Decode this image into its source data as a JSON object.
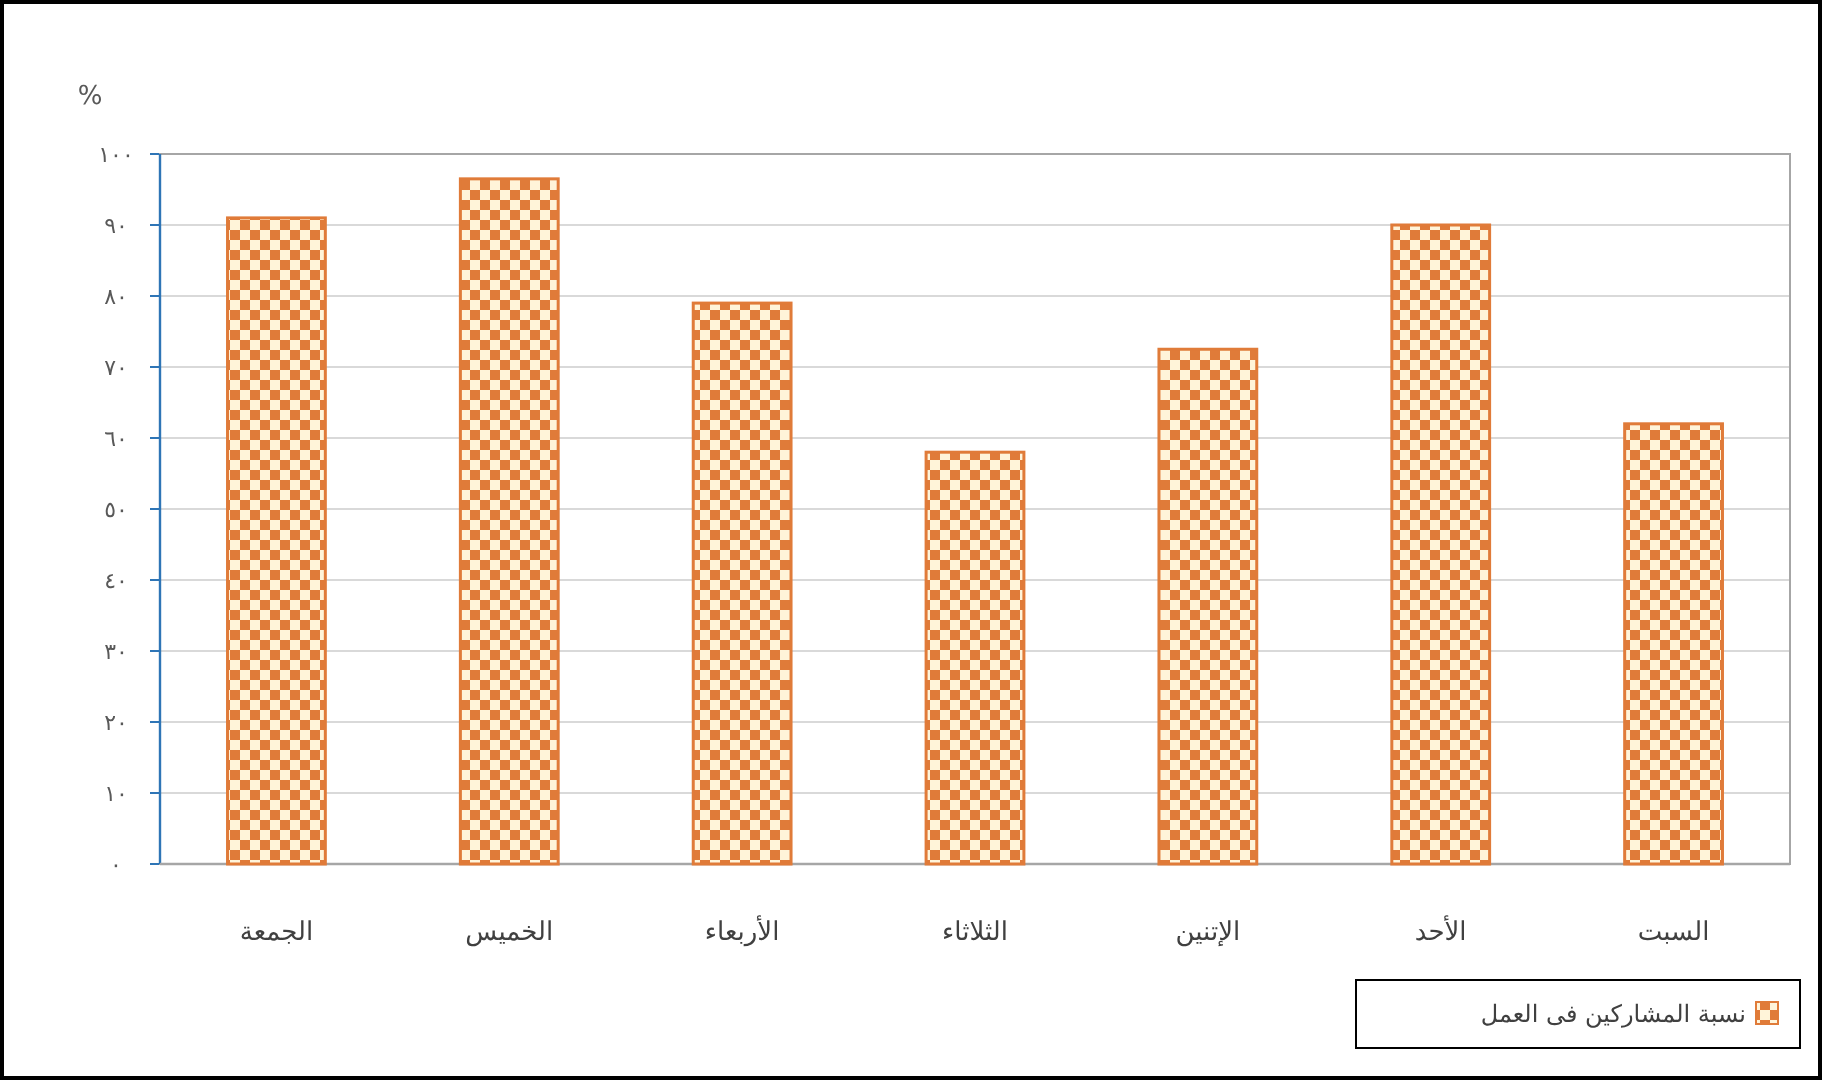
{
  "chart_data": {
    "type": "bar",
    "ylabel": "%",
    "categories": [
      "الجمعة",
      "الخميس",
      "الأربعاء",
      "الثلاثاء",
      "الإتنين",
      "الأحد",
      "السبت"
    ],
    "series": [
      {
        "name": "نسبة المشاركين فى العمل",
        "color": "#e07b39",
        "values": [
          91,
          96.5,
          79,
          58,
          72.5,
          90,
          62
        ]
      }
    ],
    "ylim": [
      0,
      100
    ],
    "yticks": [
      {
        "value": 0,
        "label": "٠"
      },
      {
        "value": 10,
        "label": "١٠"
      },
      {
        "value": 20,
        "label": "٢٠"
      },
      {
        "value": 30,
        "label": "٣٠"
      },
      {
        "value": 40,
        "label": "٤٠"
      },
      {
        "value": 50,
        "label": "٥٠"
      },
      {
        "value": 60,
        "label": "٦٠"
      },
      {
        "value": 70,
        "label": "٧٠"
      },
      {
        "value": 80,
        "label": "٨٠"
      },
      {
        "value": 90,
        "label": "٩٠"
      },
      {
        "value": 100,
        "label": "١٠٠"
      }
    ],
    "grid": "y",
    "legend": "bottom right"
  }
}
